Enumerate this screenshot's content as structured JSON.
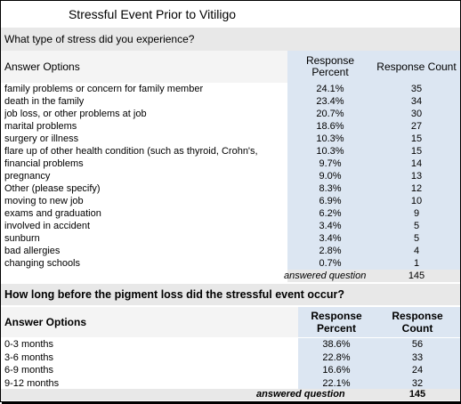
{
  "title": "Stressful Event Prior to Vitiligo",
  "q1": {
    "question": "What type of stress did you experience?",
    "header": {
      "options": "Answer Options",
      "percent_line1": "Response",
      "percent_line2": "Percent",
      "count": "Response Count"
    },
    "rows": [
      {
        "label": "family problems or concern for family member",
        "percent": "24.1%",
        "count": "35"
      },
      {
        "label": "death in the family",
        "percent": "23.4%",
        "count": "34"
      },
      {
        "label": "job loss, or other problems at job",
        "percent": "20.7%",
        "count": "30"
      },
      {
        "label": "marital problems",
        "percent": "18.6%",
        "count": "27"
      },
      {
        "label": "surgery or illness",
        "percent": "10.3%",
        "count": "15"
      },
      {
        "label": "flare up of other health condition (such as thyroid, Crohn's,",
        "percent": "10.3%",
        "count": "15"
      },
      {
        "label": "financial problems",
        "percent": "9.7%",
        "count": "14"
      },
      {
        "label": "pregnancy",
        "percent": "9.0%",
        "count": "13"
      },
      {
        "label": "Other (please specify)",
        "percent": "8.3%",
        "count": "12"
      },
      {
        "label": "moving to new job",
        "percent": "6.9%",
        "count": "10"
      },
      {
        "label": "exams and graduation",
        "percent": "6.2%",
        "count": "9"
      },
      {
        "label": "involved in accident",
        "percent": "3.4%",
        "count": "5"
      },
      {
        "label": "sunburn",
        "percent": "3.4%",
        "count": "5"
      },
      {
        "label": "bad allergies",
        "percent": "2.8%",
        "count": "4"
      },
      {
        "label": "changing schools",
        "percent": "0.7%",
        "count": "1"
      }
    ],
    "answered_label": "answered question",
    "answered_value": "145"
  },
  "q2": {
    "question": "How long before the pigment loss did the stressful event occur?",
    "header": {
      "options": "Answer Options",
      "percent_line1": "Response",
      "percent_line2": "Percent",
      "count_line1": "Response",
      "count_line2": "Count"
    },
    "rows": [
      {
        "label": "0-3 months",
        "percent": "38.6%",
        "count": "56"
      },
      {
        "label": "3-6 months",
        "percent": "22.8%",
        "count": "33"
      },
      {
        "label": "6-9 months",
        "percent": "16.6%",
        "count": "24"
      },
      {
        "label": "9-12 months",
        "percent": "22.1%",
        "count": "32"
      }
    ],
    "answered_label": "answered question",
    "answered_value": "145"
  }
}
